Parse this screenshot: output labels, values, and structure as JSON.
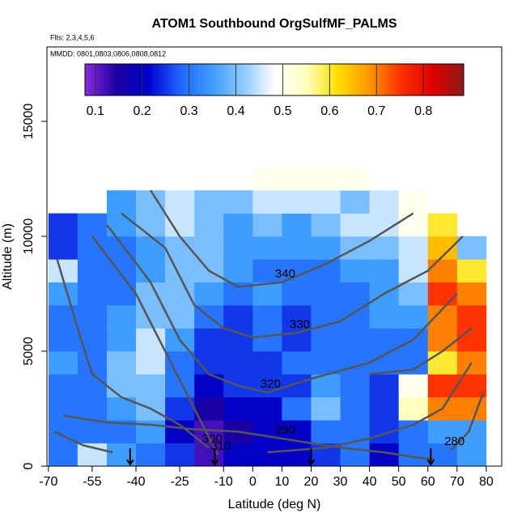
{
  "chart_data": {
    "type": "heatmap",
    "title": "ATOM1 Southbound OrgSulfMF_PALMS",
    "subtitle": "Flts: 2,3,4,5,6",
    "annotation": "MMDD: 0801,0803,0806,0808,0812",
    "xlabel": "Latitude (deg N)",
    "ylabel": "Altitude (m)",
    "xlim": [
      -70.5,
      85.3
    ],
    "ylim": [
      0,
      18240
    ],
    "xticks": [
      -70,
      -55,
      -40,
      -25,
      -10,
      0,
      10,
      20,
      30,
      40,
      50,
      60,
      70,
      80
    ],
    "yticks": [
      0,
      5000,
      10000,
      15000
    ],
    "clim": [
      0.078,
      0.886
    ],
    "cticks": [
      0.1,
      0.2,
      0.3,
      0.4,
      0.5,
      0.6,
      0.7,
      0.8
    ],
    "colormap": [
      "#8a2be2",
      "#1a00a0",
      "#0000cd",
      "#1e64ff",
      "#3c9bff",
      "#8cc8ff",
      "#ffffff",
      "#ffffc0",
      "#ffe000",
      "#ff9900",
      "#ff3000",
      "#e00000",
      "#8b1a1a"
    ],
    "x_bins": [
      -70,
      -60,
      -50,
      -40,
      -30,
      -20,
      -10,
      0,
      10,
      20,
      30,
      40,
      50,
      60,
      70,
      80
    ],
    "y_bins": [
      0,
      1000,
      2000,
      3000,
      4000,
      5000,
      6000,
      7000,
      8000,
      9000,
      10000,
      11000,
      12000,
      13000
    ],
    "z": [
      [
        0.3,
        0.45,
        0.35,
        0.3,
        0.25,
        0.12,
        0.2,
        0.2,
        0.2,
        0.25,
        0.3,
        0.2,
        0.3,
        0.3,
        0.35
      ],
      [
        0.3,
        0.3,
        0.3,
        0.35,
        0.2,
        0.12,
        0.15,
        0.2,
        0.2,
        0.3,
        0.3,
        0.25,
        0.3,
        0.35,
        0.35
      ],
      [
        0.3,
        0.3,
        0.35,
        0.4,
        0.25,
        0.15,
        0.2,
        0.2,
        0.3,
        0.4,
        0.3,
        0.25,
        0.55,
        0.7,
        0.7
      ],
      [
        0.3,
        0.3,
        0.4,
        0.4,
        0.3,
        0.2,
        0.25,
        0.25,
        0.25,
        0.35,
        0.3,
        0.25,
        0.5,
        0.75,
        0.75
      ],
      [
        0.35,
        0.3,
        0.4,
        0.45,
        0.3,
        0.25,
        0.25,
        0.25,
        0.3,
        0.3,
        0.3,
        0.3,
        0.3,
        0.6,
        0.7
      ],
      [
        0.3,
        0.3,
        0.35,
        0.45,
        0.35,
        0.25,
        0.25,
        0.3,
        0.25,
        0.3,
        0.3,
        0.3,
        0.3,
        0.7,
        0.75
      ],
      [
        0.3,
        0.3,
        0.35,
        0.4,
        0.4,
        0.3,
        0.25,
        0.3,
        0.25,
        0.3,
        0.3,
        0.35,
        0.35,
        0.7,
        0.75
      ],
      [
        0.35,
        0.3,
        0.3,
        0.4,
        0.4,
        0.35,
        0.3,
        0.35,
        0.3,
        0.3,
        0.3,
        0.35,
        0.4,
        0.75,
        0.7
      ],
      [
        0.45,
        0.3,
        0.3,
        0.35,
        0.4,
        0.4,
        0.35,
        0.3,
        0.3,
        0.3,
        0.35,
        0.35,
        0.45,
        0.7,
        0.6
      ],
      [
        0.25,
        0.3,
        0.3,
        0.35,
        0.4,
        0.4,
        0.35,
        0.35,
        0.35,
        0.35,
        0.4,
        0.4,
        0.45,
        0.65,
        0.4
      ],
      [
        0.25,
        0.3,
        0.35,
        0.4,
        0.45,
        0.4,
        0.35,
        0.4,
        0.35,
        0.4,
        0.45,
        0.45,
        0.5,
        0.6,
        null
      ],
      [
        null,
        null,
        0.35,
        0.4,
        0.45,
        0.4,
        0.4,
        0.45,
        0.45,
        0.45,
        0.4,
        0.45,
        0.5,
        null,
        null
      ],
      [
        null,
        null,
        null,
        null,
        null,
        null,
        null,
        0.5,
        0.5,
        0.5,
        0.5,
        null,
        null,
        null,
        null
      ]
    ],
    "contour_color": "#555555",
    "series": [
      {
        "name": "280",
        "x": [
          -68,
          -58,
          -48,
          null,
          68,
          74,
          79
        ],
        "y": [
          1500,
          900,
          600,
          null,
          700,
          1500,
          3200
        ]
      },
      {
        "name": "290",
        "x": [
          -65,
          -50,
          -35,
          -20,
          -5,
          10,
          30,
          45,
          55,
          62
        ],
        "y": [
          2200,
          1900,
          1800,
          1600,
          1500,
          1200,
          800,
          600,
          400,
          300
        ]
      },
      {
        "name": "300",
        "x": [
          -67,
          -60,
          -55,
          -45,
          -35,
          -25,
          -15,
          null,
          5,
          25,
          40,
          55,
          65,
          75
        ],
        "y": [
          9000,
          6000,
          4000,
          3000,
          2500,
          1800,
          800,
          null,
          600,
          800,
          1200,
          1800,
          2500,
          4500
        ]
      },
      {
        "name": "310",
        "x": [
          -55,
          -40,
          -30,
          -20,
          -12,
          null,
          40,
          55,
          65,
          75
        ],
        "y": [
          10000,
          7500,
          5000,
          2500,
          500,
          null,
          4000,
          4200,
          5000,
          6000
        ]
      },
      {
        "name": "320",
        "x": [
          -50,
          -35,
          -25,
          -15,
          -5,
          5,
          20,
          40,
          55,
          70
        ],
        "y": [
          10500,
          8000,
          5500,
          4000,
          3500,
          3200,
          3800,
          4500,
          5500,
          7500
        ]
      },
      {
        "name": "330",
        "x": [
          -45,
          -30,
          -20,
          -10,
          0,
          15,
          30,
          45,
          60,
          72
        ],
        "y": [
          11000,
          9500,
          7000,
          6000,
          5600,
          5800,
          6300,
          7500,
          8500,
          10000
        ]
      },
      {
        "name": "340",
        "x": [
          -35,
          -25,
          -15,
          -5,
          10,
          25,
          40,
          55
        ],
        "y": [
          12000,
          10000,
          8500,
          7800,
          8000,
          8800,
          9800,
          11000
        ]
      }
    ],
    "markers_x": [
      -42,
      -13,
      20,
      61
    ]
  }
}
